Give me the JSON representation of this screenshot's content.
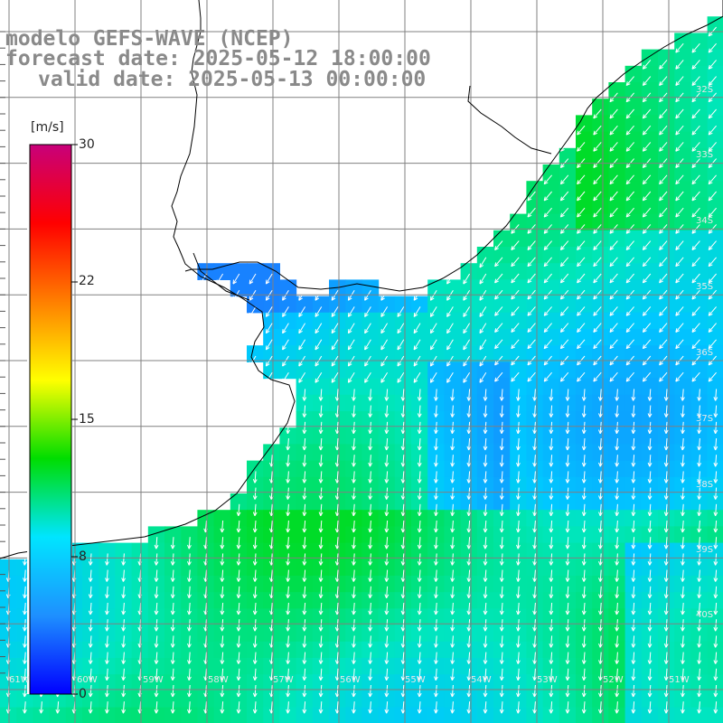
{
  "title": {
    "model": "modelo GEFS-WAVE (NCEP)",
    "forecast": "forecast date: 2025-05-12 18:00:00",
    "valid": "valid date: 2025-05-13 00:00:00"
  },
  "colorbar": {
    "unit": "[m/s]",
    "tick_labels": [
      "30",
      "22",
      "15",
      "8",
      "0"
    ],
    "colors": [
      "#0000ff",
      "#1e90ff",
      "#00e5ff",
      "#00dd00",
      "#ffff00",
      "#ff7f00",
      "#ff0000",
      "#c8007a"
    ]
  },
  "map": {
    "land_color": "#ffffff",
    "grid_color": "#808080",
    "coast_color": "#000000",
    "lat_labels": [
      "32S",
      "33S",
      "34S",
      "35S",
      "36S",
      "37S",
      "38S",
      "39S",
      "40S"
    ],
    "lon_labels": [
      "61W",
      "60W",
      "59W",
      "58W",
      "57W",
      "56W",
      "55W",
      "54W",
      "53W",
      "52W",
      "51W"
    ],
    "vector_color": "#ffffff",
    "wind_direction": "from north-east (arrows pointing south / south-west)"
  }
}
